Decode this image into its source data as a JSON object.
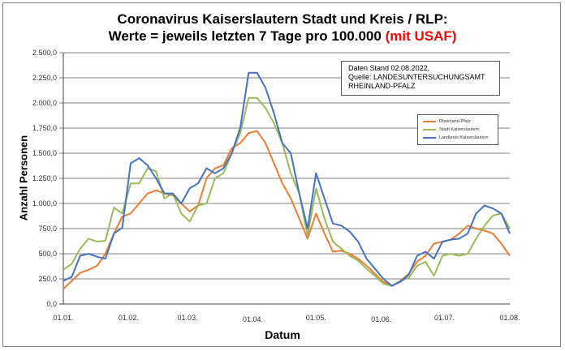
{
  "chart_data": {
    "type": "line",
    "title": "Coronavirus Kaiserslautern Stadt und Kreis / RLP:",
    "subtitle": "Werte = jeweils letzten 7 Tage pro 100.000",
    "subtitle_accent": "(mit USAF)",
    "xlabel": "Datum",
    "ylabel": "Anzahl Personen",
    "ylim": [
      0,
      2500
    ],
    "grid": true,
    "legend_position": "upper right (inside plot)",
    "y_ticks": [
      "0,0",
      "250,0",
      "500,0",
      "750,0",
      "1.000,0",
      "1.250,0",
      "1.500,0",
      "1.750,0",
      "2.000,0",
      "2.250,0",
      "2.500,0"
    ],
    "x_ticks": [
      "01.01.",
      "01.02.",
      "01.03.",
      "01.04.",
      "01.05.",
      "01.06.",
      "01.07.",
      "01.08."
    ],
    "x_tick_days": [
      0,
      31,
      59,
      90,
      120,
      151,
      181,
      212
    ],
    "annotation": [
      "Daten Stand 02.08.2022,",
      "Quelle: LANDESUNTERSUCHUNGSAMT",
      "RHEINLAND-PFALZ"
    ],
    "x_days": [
      0,
      4,
      8,
      12,
      16,
      20,
      24,
      28,
      32,
      36,
      40,
      44,
      48,
      52,
      56,
      60,
      64,
      68,
      72,
      76,
      80,
      84,
      88,
      92,
      96,
      100,
      104,
      108,
      112,
      116,
      120,
      124,
      128,
      132,
      136,
      140,
      144,
      148,
      152,
      156,
      160,
      164,
      168,
      172,
      176,
      180,
      184,
      188,
      192,
      196,
      200,
      204,
      208,
      212
    ],
    "series": [
      {
        "name": "Rheinland-Pfalz",
        "color": "#ED7D31",
        "values": [
          150,
          230,
          310,
          340,
          380,
          500,
          700,
          870,
          900,
          1000,
          1100,
          1130,
          1100,
          1080,
          1000,
          920,
          980,
          1250,
          1350,
          1380,
          1550,
          1600,
          1700,
          1720,
          1600,
          1400,
          1200,
          1050,
          850,
          650,
          900,
          700,
          520,
          530,
          500,
          450,
          380,
          300,
          220,
          180,
          230,
          300,
          420,
          480,
          600,
          620,
          640,
          700,
          780,
          750,
          730,
          700,
          600,
          480
        ]
      },
      {
        "name": "Stadt Kaiserslautern",
        "color": "#9BBB59",
        "values": [
          340,
          400,
          550,
          650,
          620,
          630,
          960,
          900,
          1200,
          1200,
          1350,
          1320,
          1050,
          1100,
          900,
          820,
          980,
          1000,
          1250,
          1300,
          1500,
          1700,
          2050,
          2050,
          1950,
          1800,
          1600,
          1300,
          1100,
          680,
          1150,
          850,
          620,
          550,
          480,
          430,
          350,
          280,
          200,
          180,
          230,
          260,
          380,
          420,
          280,
          480,
          500,
          480,
          500,
          650,
          780,
          880,
          900,
          750
        ]
      },
      {
        "name": "Landkreis Kaiserslautern",
        "color": "#4472C4",
        "values": [
          230,
          270,
          480,
          500,
          470,
          450,
          700,
          760,
          1400,
          1450,
          1380,
          1250,
          1100,
          1100,
          1000,
          1150,
          1200,
          1350,
          1300,
          1350,
          1500,
          1750,
          2300,
          2300,
          2150,
          1900,
          1600,
          1500,
          1100,
          750,
          1300,
          1050,
          800,
          780,
          720,
          620,
          450,
          350,
          250,
          180,
          220,
          290,
          480,
          520,
          450,
          620,
          640,
          650,
          700,
          900,
          980,
          950,
          900,
          700
        ]
      }
    ]
  },
  "infobox": {
    "line1": "Daten Stand 02.08.2022,",
    "line2": "Quelle: LANDESUNTERSUCHUNGSAMT",
    "line3": "RHEINLAND-PFALZ"
  },
  "legend": {
    "items": [
      {
        "label": "Rheinland-Pfalz",
        "color": "#ED7D31"
      },
      {
        "label": "Stadt Kaiserslautern",
        "color": "#9BBB59"
      },
      {
        "label": "Landkreis Kaiserslautern",
        "color": "#4472C4"
      }
    ]
  }
}
